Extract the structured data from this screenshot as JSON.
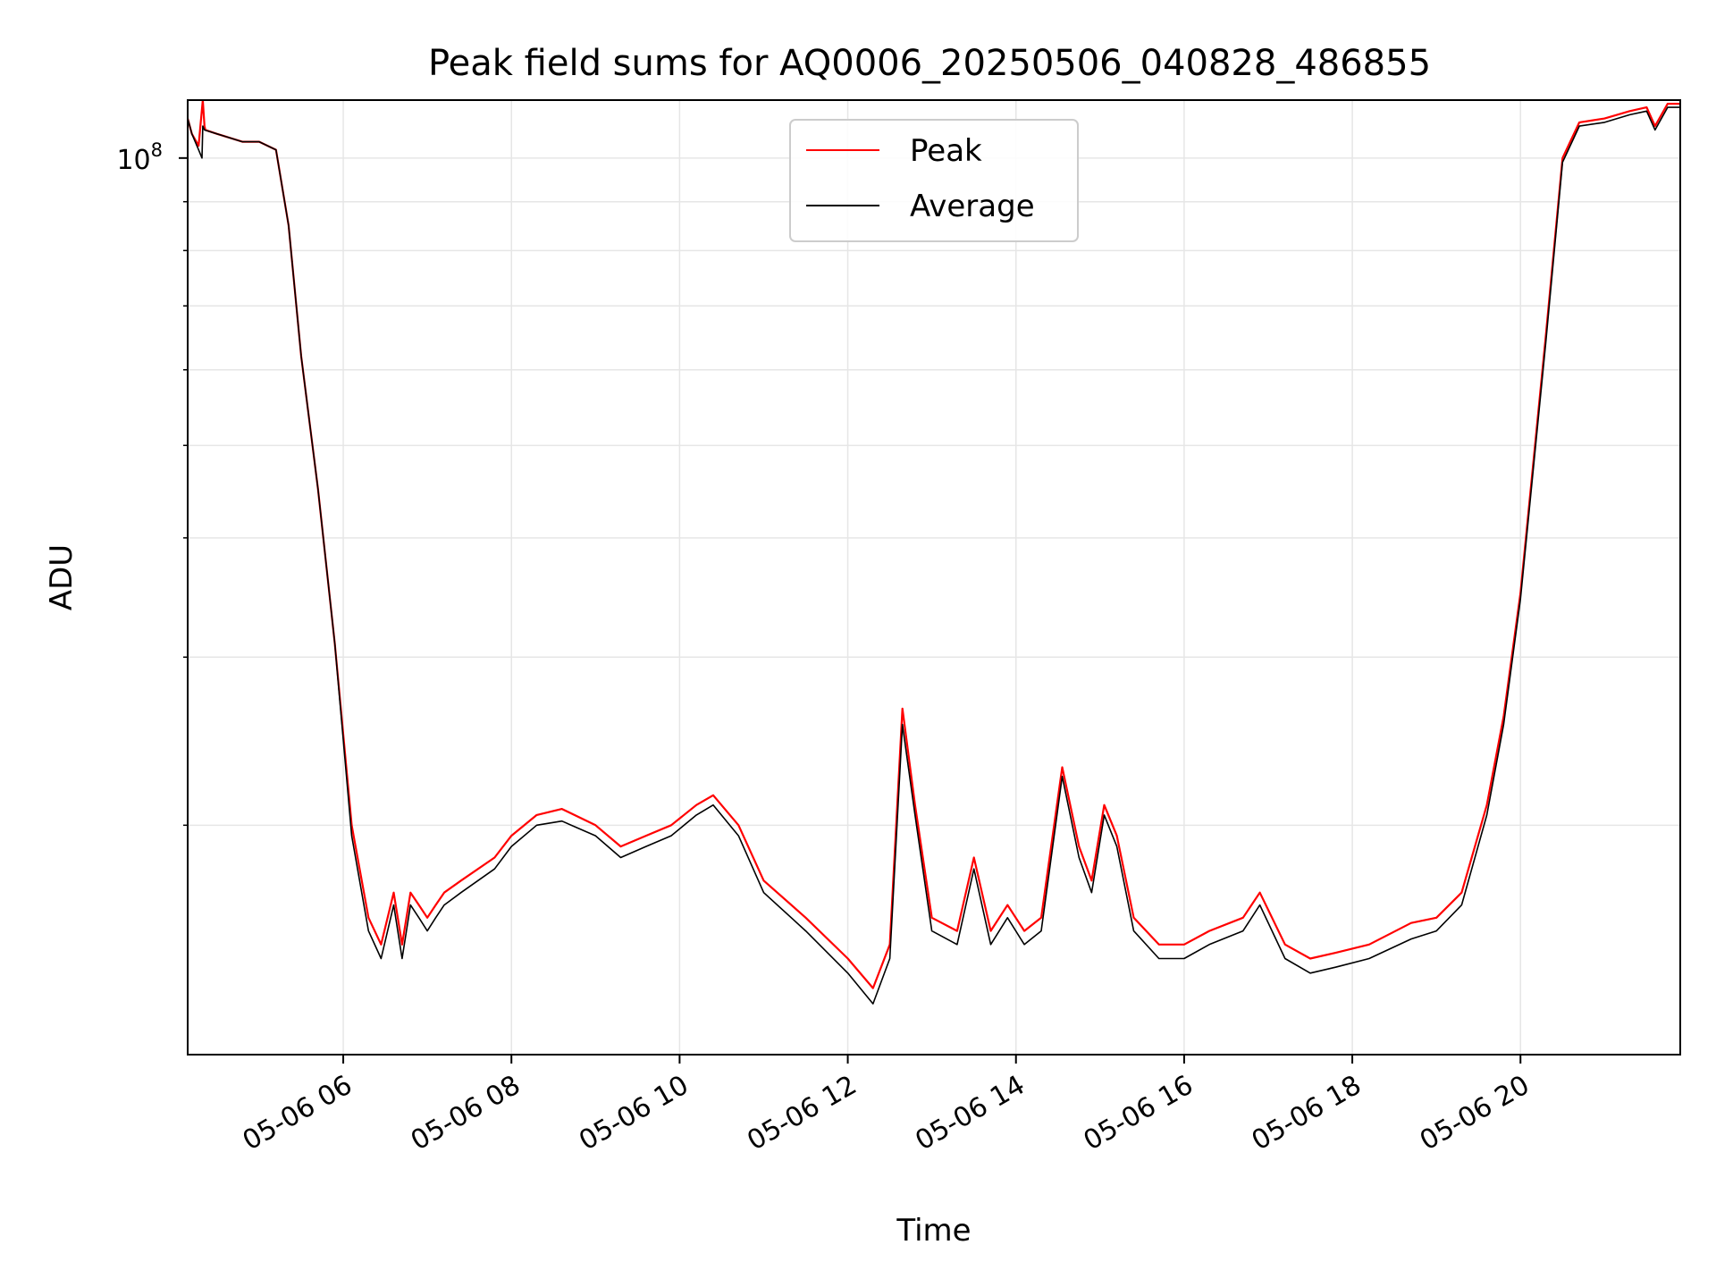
{
  "chart_data": {
    "type": "line",
    "title": "Peak field sums for AQ0006_20250506_040828_486855",
    "xlabel": "Time",
    "ylabel": "ADU",
    "yscale": "log",
    "xlim": [
      4.15,
      21.9
    ],
    "ylim": [
      11500000,
      115000000
    ],
    "grid": true,
    "legend_position": "top-center",
    "x_ticks": [
      {
        "value": 6,
        "label": "05-06 06"
      },
      {
        "value": 8,
        "label": "05-06 08"
      },
      {
        "value": 10,
        "label": "05-06 10"
      },
      {
        "value": 12,
        "label": "05-06 12"
      },
      {
        "value": 14,
        "label": "05-06 14"
      },
      {
        "value": 16,
        "label": "05-06 16"
      },
      {
        "value": 18,
        "label": "05-06 18"
      },
      {
        "value": 20,
        "label": "05-06 20"
      }
    ],
    "y_ticks": [
      {
        "value": 100000000,
        "base": "10",
        "exponent": "8"
      }
    ],
    "y_minor_ticks": [
      20000000,
      30000000,
      40000000,
      50000000,
      60000000,
      70000000,
      80000000,
      90000000
    ],
    "colors": {
      "peak": "#ff0000",
      "average": "#000000",
      "grid": "#e6e6e6"
    },
    "x_unit_note_hours": "x values are hour of day on 2025-05-06",
    "series": [
      {
        "name": "Peak",
        "color": "#ff0000",
        "x": [
          4.15,
          4.2,
          4.28,
          4.33,
          4.35,
          4.36,
          4.5,
          4.8,
          5.0,
          5.2,
          5.35,
          5.5,
          5.7,
          5.9,
          6.1,
          6.3,
          6.45,
          6.6,
          6.7,
          6.8,
          6.9,
          7.0,
          7.1,
          7.2,
          7.4,
          7.8,
          8.0,
          8.3,
          8.6,
          9.0,
          9.3,
          9.6,
          9.9,
          10.2,
          10.4,
          10.7,
          11.0,
          11.5,
          12.0,
          12.3,
          12.5,
          12.65,
          12.8,
          13.0,
          13.3,
          13.5,
          13.7,
          13.9,
          14.1,
          14.3,
          14.55,
          14.75,
          14.9,
          15.05,
          15.2,
          15.4,
          15.7,
          16.0,
          16.3,
          16.7,
          16.9,
          17.2,
          17.5,
          17.8,
          18.2,
          18.7,
          19.0,
          19.3,
          19.6,
          19.8,
          20.0,
          20.3,
          20.5,
          20.7,
          21.0,
          21.3,
          21.5,
          21.6,
          21.75,
          21.9
        ],
        "y": [
          110000000,
          106000000,
          103000000,
          115000000,
          108000000,
          107000000,
          106000000,
          104000000,
          104000000,
          102000000,
          85000000,
          62000000,
          45000000,
          31000000,
          20000000,
          16000000,
          15000000,
          17000000,
          15000000,
          17000000,
          16500000,
          16000000,
          16500000,
          17000000,
          17500000,
          18500000,
          19500000,
          20500000,
          20800000,
          20000000,
          19000000,
          19500000,
          20000000,
          21000000,
          21500000,
          20000000,
          17500000,
          16000000,
          14500000,
          13500000,
          15000000,
          26500000,
          21000000,
          16000000,
          15500000,
          18500000,
          15500000,
          16500000,
          15500000,
          16000000,
          23000000,
          19000000,
          17500000,
          21000000,
          19500000,
          16000000,
          15000000,
          15000000,
          15500000,
          16000000,
          17000000,
          15000000,
          14500000,
          14700000,
          15000000,
          15800000,
          16000000,
          17000000,
          21000000,
          26000000,
          35000000,
          65000000,
          100000000,
          109000000,
          110000000,
          112000000,
          113000000,
          108000000,
          114000000,
          114000000
        ]
      },
      {
        "name": "Average",
        "color": "#000000",
        "x": [
          4.15,
          4.2,
          4.28,
          4.32,
          4.33,
          4.35,
          4.5,
          4.8,
          5.0,
          5.2,
          5.35,
          5.5,
          5.7,
          5.9,
          6.1,
          6.3,
          6.45,
          6.6,
          6.7,
          6.8,
          6.9,
          7.0,
          7.1,
          7.2,
          7.4,
          7.8,
          8.0,
          8.3,
          8.6,
          9.0,
          9.3,
          9.6,
          9.9,
          10.2,
          10.4,
          10.7,
          11.0,
          11.5,
          12.0,
          12.3,
          12.5,
          12.65,
          12.8,
          13.0,
          13.3,
          13.5,
          13.7,
          13.9,
          14.1,
          14.3,
          14.55,
          14.75,
          14.9,
          15.05,
          15.2,
          15.4,
          15.7,
          16.0,
          16.3,
          16.7,
          16.9,
          17.2,
          17.5,
          17.8,
          18.2,
          18.7,
          19.0,
          19.3,
          19.6,
          19.8,
          20.0,
          20.3,
          20.5,
          20.7,
          21.0,
          21.3,
          21.5,
          21.6,
          21.75,
          21.9
        ],
        "y": [
          110000000,
          106000000,
          102000000,
          100000000,
          108000000,
          107000000,
          106000000,
          104000000,
          104000000,
          102000000,
          85000000,
          62000000,
          45000000,
          31000000,
          19500000,
          15500000,
          14500000,
          16500000,
          14500000,
          16500000,
          16000000,
          15500000,
          16000000,
          16500000,
          17000000,
          18000000,
          19000000,
          20000000,
          20200000,
          19500000,
          18500000,
          19000000,
          19500000,
          20500000,
          21000000,
          19500000,
          17000000,
          15500000,
          14000000,
          13000000,
          14500000,
          25500000,
          20500000,
          15500000,
          15000000,
          18000000,
          15000000,
          16000000,
          15000000,
          15500000,
          22500000,
          18500000,
          17000000,
          20500000,
          19000000,
          15500000,
          14500000,
          14500000,
          15000000,
          15500000,
          16500000,
          14500000,
          14000000,
          14200000,
          14500000,
          15200000,
          15500000,
          16500000,
          20500000,
          25500000,
          34500000,
          64000000,
          99000000,
          108000000,
          109000000,
          111000000,
          112000000,
          107000000,
          113000000,
          113000000
        ]
      }
    ]
  }
}
